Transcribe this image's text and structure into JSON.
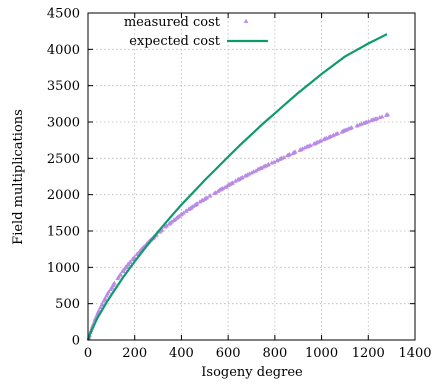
{
  "chart_data": {
    "type": "scatter",
    "xlabel": "Isogeny degree",
    "ylabel": "Field multiplications",
    "xlim": [
      0,
      1400
    ],
    "ylim": [
      0,
      4500
    ],
    "xticks": [
      0,
      200,
      400,
      600,
      800,
      1000,
      1200,
      1400
    ],
    "yticks": [
      0,
      500,
      1000,
      1500,
      2000,
      2500,
      3000,
      3500,
      4000,
      4500
    ],
    "grid": true,
    "legend_position": "top-left",
    "series": [
      {
        "name": "measured cost",
        "kind": "scatter",
        "marker": "triangle",
        "color": "#b98be6",
        "points": [
          [
            3,
            20
          ],
          [
            5,
            45
          ],
          [
            7,
            70
          ],
          [
            11,
            110
          ],
          [
            13,
            135
          ],
          [
            17,
            170
          ],
          [
            19,
            190
          ],
          [
            23,
            225
          ],
          [
            29,
            275
          ],
          [
            31,
            295
          ],
          [
            37,
            335
          ],
          [
            41,
            365
          ],
          [
            43,
            385
          ],
          [
            47,
            410
          ],
          [
            53,
            450
          ],
          [
            59,
            485
          ],
          [
            61,
            500
          ],
          [
            67,
            540
          ],
          [
            71,
            560
          ],
          [
            73,
            575
          ],
          [
            79,
            610
          ],
          [
            83,
            640
          ],
          [
            89,
            665
          ],
          [
            97,
            700
          ],
          [
            101,
            720
          ],
          [
            103,
            730
          ],
          [
            107,
            755
          ],
          [
            109,
            770
          ],
          [
            113,
            785
          ],
          [
            127,
            850
          ],
          [
            131,
            870
          ],
          [
            137,
            895
          ],
          [
            139,
            905
          ],
          [
            149,
            945
          ],
          [
            151,
            950
          ],
          [
            157,
            980
          ],
          [
            163,
            1005
          ],
          [
            167,
            1020
          ],
          [
            173,
            1045
          ],
          [
            179,
            1070
          ],
          [
            181,
            1075
          ],
          [
            191,
            1110
          ],
          [
            193,
            1120
          ],
          [
            197,
            1135
          ],
          [
            199,
            1140
          ],
          [
            211,
            1190
          ],
          [
            223,
            1230
          ],
          [
            227,
            1240
          ],
          [
            229,
            1250
          ],
          [
            233,
            1265
          ],
          [
            239,
            1280
          ],
          [
            241,
            1290
          ],
          [
            251,
            1325
          ],
          [
            257,
            1345
          ],
          [
            263,
            1365
          ],
          [
            269,
            1380
          ],
          [
            271,
            1390
          ],
          [
            277,
            1400
          ],
          [
            281,
            1420
          ],
          [
            283,
            1425
          ],
          [
            293,
            1455
          ],
          [
            307,
            1490
          ],
          [
            311,
            1505
          ],
          [
            313,
            1510
          ],
          [
            317,
            1520
          ],
          [
            331,
            1560
          ],
          [
            337,
            1575
          ],
          [
            347,
            1600
          ],
          [
            349,
            1605
          ],
          [
            353,
            1615
          ],
          [
            359,
            1630
          ],
          [
            367,
            1650
          ],
          [
            373,
            1660
          ],
          [
            379,
            1680
          ],
          [
            383,
            1690
          ],
          [
            389,
            1705
          ],
          [
            397,
            1725
          ],
          [
            401,
            1735
          ],
          [
            409,
            1750
          ],
          [
            419,
            1775
          ],
          [
            421,
            1780
          ],
          [
            431,
            1800
          ],
          [
            433,
            1805
          ],
          [
            439,
            1815
          ],
          [
            443,
            1825
          ],
          [
            449,
            1840
          ],
          [
            457,
            1855
          ],
          [
            461,
            1865
          ],
          [
            463,
            1870
          ],
          [
            467,
            1880
          ],
          [
            479,
            1905
          ],
          [
            487,
            1920
          ],
          [
            491,
            1925
          ],
          [
            499,
            1940
          ],
          [
            503,
            1950
          ],
          [
            509,
            1960
          ],
          [
            521,
            1985
          ],
          [
            523,
            1990
          ],
          [
            541,
            2020
          ],
          [
            547,
            2030
          ],
          [
            557,
            2050
          ],
          [
            563,
            2065
          ],
          [
            569,
            2075
          ],
          [
            571,
            2080
          ],
          [
            577,
            2090
          ],
          [
            587,
            2105
          ],
          [
            593,
            2110
          ],
          [
            599,
            2130
          ],
          [
            601,
            2135
          ],
          [
            607,
            2145
          ],
          [
            613,
            2155
          ],
          [
            617,
            2160
          ],
          [
            619,
            2165
          ],
          [
            631,
            2190
          ],
          [
            641,
            2205
          ],
          [
            643,
            2210
          ],
          [
            647,
            2215
          ],
          [
            653,
            2225
          ],
          [
            659,
            2235
          ],
          [
            661,
            2240
          ],
          [
            673,
            2260
          ],
          [
            677,
            2265
          ],
          [
            683,
            2275
          ],
          [
            691,
            2290
          ],
          [
            701,
            2305
          ],
          [
            709,
            2320
          ],
          [
            719,
            2330
          ],
          [
            727,
            2350
          ],
          [
            733,
            2360
          ],
          [
            739,
            2365
          ],
          [
            743,
            2370
          ],
          [
            751,
            2385
          ],
          [
            757,
            2395
          ],
          [
            761,
            2400
          ],
          [
            769,
            2410
          ],
          [
            773,
            2420
          ],
          [
            787,
            2440
          ],
          [
            797,
            2450
          ],
          [
            809,
            2470
          ],
          [
            811,
            2475
          ],
          [
            821,
            2490
          ],
          [
            823,
            2495
          ],
          [
            827,
            2500
          ],
          [
            829,
            2505
          ],
          [
            839,
            2515
          ],
          [
            853,
            2540
          ],
          [
            857,
            2545
          ],
          [
            859,
            2548
          ],
          [
            863,
            2555
          ],
          [
            877,
            2570
          ],
          [
            881,
            2580
          ],
          [
            883,
            2585
          ],
          [
            887,
            2590
          ],
          [
            907,
            2615
          ],
          [
            911,
            2625
          ],
          [
            919,
            2635
          ],
          [
            929,
            2650
          ],
          [
            937,
            2660
          ],
          [
            941,
            2665
          ],
          [
            947,
            2675
          ],
          [
            953,
            2680
          ],
          [
            967,
            2700
          ],
          [
            971,
            2705
          ],
          [
            977,
            2715
          ],
          [
            983,
            2725
          ],
          [
            991,
            2735
          ],
          [
            997,
            2745
          ],
          [
            1009,
            2760
          ],
          [
            1013,
            2770
          ],
          [
            1019,
            2775
          ],
          [
            1021,
            2780
          ],
          [
            1031,
            2790
          ],
          [
            1033,
            2795
          ],
          [
            1039,
            2805
          ],
          [
            1049,
            2815
          ],
          [
            1051,
            2820
          ],
          [
            1061,
            2835
          ],
          [
            1063,
            2840
          ],
          [
            1069,
            2845
          ],
          [
            1087,
            2865
          ],
          [
            1091,
            2875
          ],
          [
            1093,
            2878
          ],
          [
            1097,
            2885
          ],
          [
            1103,
            2890
          ],
          [
            1109,
            2900
          ],
          [
            1117,
            2910
          ],
          [
            1123,
            2915
          ],
          [
            1129,
            2925
          ],
          [
            1151,
            2950
          ],
          [
            1153,
            2955
          ],
          [
            1163,
            2965
          ],
          [
            1171,
            2975
          ],
          [
            1181,
            2985
          ],
          [
            1187,
            2995
          ],
          [
            1193,
            3000
          ],
          [
            1201,
            3010
          ],
          [
            1213,
            3025
          ],
          [
            1217,
            3030
          ],
          [
            1223,
            3035
          ],
          [
            1229,
            3040
          ],
          [
            1231,
            3045
          ],
          [
            1237,
            3050
          ],
          [
            1249,
            3065
          ],
          [
            1259,
            3075
          ],
          [
            1277,
            3095
          ],
          [
            1279,
            3100
          ],
          [
            1283,
            3105
          ],
          [
            150,
            960
          ],
          [
            160,
            1000
          ],
          [
            170,
            1040
          ],
          [
            180,
            1075
          ],
          [
            190,
            1110
          ],
          [
            210,
            1180
          ],
          [
            220,
            1215
          ],
          [
            240,
            1280
          ],
          [
            250,
            1315
          ],
          [
            260,
            1345
          ],
          [
            280,
            1410
          ],
          [
            290,
            1440
          ]
        ]
      },
      {
        "name": "expected cost",
        "kind": "line",
        "color": "#0f9a6e",
        "points": [
          [
            0,
            0
          ],
          [
            5,
            40
          ],
          [
            10,
            95
          ],
          [
            20,
            165
          ],
          [
            40,
            300
          ],
          [
            60,
            410
          ],
          [
            80,
            520
          ],
          [
            100,
            620
          ],
          [
            150,
            860
          ],
          [
            200,
            1080
          ],
          [
            250,
            1290
          ],
          [
            300,
            1490
          ],
          [
            350,
            1680
          ],
          [
            400,
            1860
          ],
          [
            450,
            2030
          ],
          [
            500,
            2200
          ],
          [
            550,
            2360
          ],
          [
            600,
            2520
          ],
          [
            650,
            2680
          ],
          [
            700,
            2830
          ],
          [
            750,
            2980
          ],
          [
            800,
            3120
          ],
          [
            850,
            3260
          ],
          [
            900,
            3400
          ],
          [
            950,
            3530
          ],
          [
            1000,
            3660
          ],
          [
            1050,
            3780
          ],
          [
            1100,
            3900
          ],
          [
            1150,
            3990
          ],
          [
            1200,
            4080
          ],
          [
            1250,
            4160
          ],
          [
            1280,
            4210
          ]
        ]
      }
    ]
  }
}
